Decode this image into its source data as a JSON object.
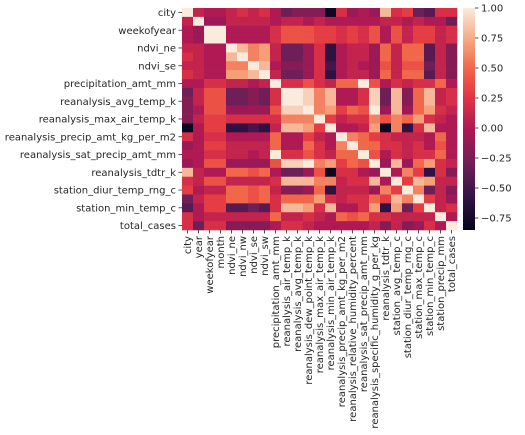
{
  "chart_data": {
    "type": "heatmap",
    "title": "",
    "xlabel": "",
    "ylabel": "",
    "x_labels": [
      "city",
      "year",
      "weekofyear",
      "month",
      "ndvi_ne",
      "ndvi_nw",
      "ndvi_se",
      "ndvi_sw",
      "precipitation_amt_mm",
      "reanalysis_air_temp_k",
      "reanalysis_avg_temp_k",
      "reanalysis_dew_point_temp_k",
      "reanalysis_max_air_temp_k",
      "reanalysis_min_air_temp_k",
      "reanalysis_precip_amt_kg_per_m2",
      "reanalysis_relative_humidity_percent",
      "reanalysis_sat_precip_amt_mm",
      "reanalysis_specific_humidity_g_per_kg",
      "reanalysis_tdtr_k",
      "station_avg_temp_c",
      "station_diur_temp_rng_c",
      "station_max_temp_c",
      "station_min_temp_c",
      "station_precip_mm",
      "total_cases"
    ],
    "y_labels": [
      "city",
      "year",
      "weekofyear",
      "month",
      "ndvi_ne",
      "ndvi_nw",
      "ndvi_se",
      "ndvi_sw",
      "precipitation_amt_mm",
      "reanalysis_air_temp_k",
      "reanalysis_avg_temp_k",
      "reanalysis_dew_point_temp_k",
      "reanalysis_max_air_temp_k",
      "reanalysis_min_air_temp_k",
      "reanalysis_precip_amt_kg_per_m2",
      "reanalysis_relative_humidity_percent",
      "reanalysis_sat_precip_amt_mm",
      "reanalysis_specific_humidity_g_per_kg",
      "reanalysis_tdtr_k",
      "station_avg_temp_c",
      "station_diur_temp_rng_c",
      "station_max_temp_c",
      "station_min_temp_c",
      "station_precip_mm",
      "total_cases"
    ],
    "y_tick_labels_shown": [
      "city",
      "weekofyear",
      "ndvi_ne",
      "ndvi_se",
      "precipitation_amt_mm",
      "reanalysis_avg_temp_k",
      "reanalysis_max_air_temp_k",
      "reanalysis_precip_amt_kg_per_m2",
      "reanalysis_sat_precip_amt_mm",
      "reanalysis_tdtr_k",
      "station_diur_temp_rng_c",
      "station_min_temp_c",
      "total_cases"
    ],
    "values": [
      [
        1.0,
        0.1,
        0.0,
        0.0,
        0.1,
        0.2,
        0.1,
        0.2,
        0.0,
        -0.3,
        -0.2,
        -0.2,
        -0.2,
        -0.8,
        0.2,
        -0.1,
        0.0,
        -0.1,
        0.8,
        0.2,
        0.3,
        -0.3,
        -0.4,
        0.2,
        0.2
      ],
      [
        0.1,
        1.0,
        -0.1,
        -0.1,
        0.1,
        0.1,
        0.1,
        0.1,
        0.0,
        0.1,
        0.1,
        0.0,
        0.1,
        0.0,
        0.0,
        0.0,
        0.0,
        0.0,
        0.1,
        0.1,
        0.0,
        0.1,
        0.0,
        0.0,
        -0.3
      ],
      [
        0.0,
        -0.1,
        1.0,
        1.0,
        0.0,
        0.0,
        0.0,
        0.0,
        0.2,
        0.4,
        0.4,
        0.4,
        0.3,
        0.3,
        0.2,
        0.3,
        0.2,
        0.4,
        0.0,
        0.4,
        0.1,
        0.3,
        0.3,
        0.1,
        0.2
      ],
      [
        0.0,
        -0.1,
        1.0,
        1.0,
        0.0,
        0.0,
        0.0,
        0.0,
        0.2,
        0.4,
        0.4,
        0.4,
        0.3,
        0.3,
        0.2,
        0.3,
        0.2,
        0.4,
        0.0,
        0.4,
        0.1,
        0.3,
        0.3,
        0.1,
        0.2
      ],
      [
        0.1,
        0.1,
        0.0,
        0.0,
        1.0,
        0.8,
        0.6,
        0.7,
        0.1,
        -0.3,
        -0.3,
        -0.1,
        0.2,
        -0.6,
        0.0,
        0.1,
        0.1,
        -0.1,
        0.5,
        0.1,
        0.5,
        0.5,
        -0.4,
        0.1,
        -0.2
      ],
      [
        0.2,
        0.1,
        0.0,
        0.0,
        0.8,
        1.0,
        0.6,
        0.7,
        0.1,
        -0.3,
        -0.3,
        -0.1,
        0.2,
        -0.6,
        0.0,
        0.1,
        0.1,
        -0.1,
        0.5,
        0.1,
        0.5,
        0.5,
        -0.4,
        0.1,
        -0.2
      ],
      [
        0.1,
        0.1,
        0.0,
        0.0,
        0.6,
        0.6,
        1.0,
        0.8,
        0.0,
        -0.2,
        -0.2,
        -0.1,
        0.2,
        -0.5,
        0.0,
        0.1,
        0.0,
        -0.1,
        0.4,
        0.1,
        0.4,
        0.4,
        -0.3,
        0.1,
        -0.2
      ],
      [
        0.2,
        0.1,
        0.0,
        0.0,
        0.7,
        0.7,
        0.8,
        1.0,
        0.1,
        -0.3,
        -0.3,
        -0.1,
        0.2,
        -0.6,
        0.0,
        0.1,
        0.1,
        -0.1,
        0.5,
        0.1,
        0.5,
        0.5,
        -0.4,
        0.1,
        -0.2
      ],
      [
        0.0,
        0.0,
        0.2,
        0.2,
        0.1,
        0.1,
        0.0,
        0.1,
        1.0,
        0.2,
        0.2,
        0.4,
        0.2,
        0.1,
        0.5,
        0.5,
        1.0,
        0.4,
        0.0,
        0.2,
        0.1,
        0.2,
        0.2,
        0.5,
        0.0
      ],
      [
        -0.3,
        0.1,
        0.4,
        0.4,
        -0.3,
        -0.3,
        -0.2,
        -0.3,
        0.2,
        1.0,
        1.0,
        0.9,
        0.6,
        0.8,
        0.0,
        0.0,
        0.2,
        0.9,
        -0.3,
        0.8,
        -0.2,
        0.5,
        0.8,
        0.1,
        0.2
      ],
      [
        -0.2,
        0.1,
        0.4,
        0.4,
        -0.3,
        -0.3,
        -0.2,
        -0.3,
        0.2,
        1.0,
        1.0,
        0.9,
        0.6,
        0.8,
        0.0,
        0.0,
        0.2,
        0.9,
        -0.3,
        0.8,
        -0.2,
        0.5,
        0.8,
        0.1,
        0.2
      ],
      [
        -0.2,
        0.0,
        0.4,
        0.4,
        -0.1,
        -0.1,
        -0.1,
        -0.1,
        0.4,
        0.9,
        0.9,
        1.0,
        0.6,
        0.7,
        0.3,
        0.5,
        0.4,
        1.0,
        -0.1,
        0.8,
        -0.1,
        0.5,
        0.7,
        0.2,
        0.1
      ],
      [
        -0.2,
        0.1,
        0.3,
        0.3,
        0.2,
        0.2,
        0.2,
        0.2,
        0.2,
        0.6,
        0.6,
        0.6,
        1.0,
        0.3,
        0.1,
        0.2,
        0.2,
        0.6,
        0.4,
        0.6,
        0.5,
        0.7,
        0.2,
        0.1,
        0.0
      ],
      [
        -0.8,
        0.0,
        0.3,
        0.3,
        -0.6,
        -0.6,
        -0.5,
        -0.6,
        0.1,
        0.8,
        0.8,
        0.7,
        0.3,
        1.0,
        0.0,
        0.0,
        0.1,
        0.7,
        -0.8,
        0.6,
        -0.6,
        0.2,
        0.8,
        0.0,
        0.0
      ],
      [
        0.2,
        0.0,
        0.2,
        0.2,
        0.0,
        0.0,
        0.0,
        0.0,
        0.5,
        0.0,
        0.0,
        0.3,
        0.1,
        0.0,
        1.0,
        0.6,
        0.5,
        0.3,
        0.2,
        0.1,
        0.1,
        0.1,
        0.0,
        0.5,
        0.0
      ],
      [
        -0.1,
        0.0,
        0.3,
        0.3,
        0.1,
        0.1,
        0.1,
        0.1,
        0.5,
        0.0,
        0.0,
        0.5,
        0.2,
        0.0,
        0.6,
        1.0,
        0.5,
        0.5,
        0.2,
        0.2,
        0.1,
        0.2,
        0.0,
        0.4,
        0.0
      ],
      [
        0.0,
        0.0,
        0.2,
        0.2,
        0.1,
        0.1,
        0.0,
        0.1,
        1.0,
        0.2,
        0.2,
        0.4,
        0.2,
        0.1,
        0.5,
        0.5,
        1.0,
        0.4,
        0.0,
        0.2,
        0.1,
        0.2,
        0.2,
        0.5,
        0.0
      ],
      [
        -0.1,
        0.0,
        0.4,
        0.4,
        -0.1,
        -0.1,
        -0.1,
        -0.1,
        0.4,
        0.9,
        0.9,
        1.0,
        0.6,
        0.7,
        0.3,
        0.5,
        0.4,
        1.0,
        -0.1,
        0.8,
        -0.1,
        0.5,
        0.7,
        0.2,
        0.1
      ],
      [
        0.8,
        0.1,
        0.0,
        0.0,
        0.5,
        0.5,
        0.4,
        0.5,
        0.0,
        -0.3,
        -0.3,
        -0.1,
        0.4,
        -0.8,
        0.2,
        0.2,
        0.0,
        -0.1,
        1.0,
        0.0,
        0.6,
        0.3,
        -0.6,
        0.2,
        -0.2
      ],
      [
        0.2,
        0.1,
        0.4,
        0.4,
        0.1,
        0.1,
        0.1,
        0.1,
        0.2,
        0.8,
        0.8,
        0.8,
        0.6,
        0.6,
        0.1,
        0.2,
        0.2,
        0.8,
        0.0,
        1.0,
        0.3,
        0.8,
        0.7,
        0.1,
        0.1
      ],
      [
        0.3,
        0.0,
        0.1,
        0.1,
        0.5,
        0.5,
        0.4,
        0.5,
        0.1,
        -0.2,
        -0.2,
        -0.1,
        0.5,
        -0.6,
        0.1,
        0.1,
        0.1,
        -0.1,
        0.6,
        0.3,
        1.0,
        0.6,
        -0.3,
        0.1,
        -0.2
      ],
      [
        -0.3,
        0.1,
        0.3,
        0.3,
        0.5,
        0.5,
        0.4,
        0.5,
        0.2,
        0.5,
        0.5,
        0.5,
        0.7,
        0.2,
        0.1,
        0.2,
        0.2,
        0.5,
        0.3,
        0.8,
        0.6,
        1.0,
        0.3,
        0.1,
        -0.1
      ],
      [
        -0.4,
        0.0,
        0.3,
        0.3,
        -0.4,
        -0.4,
        -0.3,
        -0.4,
        0.2,
        0.8,
        0.8,
        0.7,
        0.2,
        0.8,
        0.0,
        0.0,
        0.2,
        0.7,
        -0.6,
        0.7,
        -0.3,
        0.3,
        1.0,
        0.1,
        0.2
      ],
      [
        0.2,
        0.0,
        0.1,
        0.1,
        0.1,
        0.1,
        0.1,
        0.1,
        0.5,
        0.1,
        0.1,
        0.2,
        0.1,
        0.0,
        0.5,
        0.4,
        0.5,
        0.2,
        0.2,
        0.1,
        0.1,
        0.1,
        0.1,
        1.0,
        0.0
      ],
      [
        0.2,
        -0.3,
        0.2,
        0.2,
        -0.2,
        -0.2,
        -0.2,
        -0.2,
        0.0,
        0.2,
        0.2,
        0.1,
        0.0,
        0.0,
        0.0,
        0.0,
        0.0,
        0.1,
        -0.2,
        0.1,
        -0.2,
        -0.1,
        0.2,
        0.0,
        1.0
      ]
    ],
    "colorbar": {
      "range": [
        -0.85,
        1.0
      ],
      "ticks": [
        "1.00",
        "0.75",
        "0.50",
        "0.25",
        "0.00",
        "−0.25",
        "−0.50",
        "−0.75"
      ],
      "tick_values": [
        1.0,
        0.75,
        0.5,
        0.25,
        0.0,
        -0.25,
        -0.5,
        -0.75
      ],
      "colormap": "rocket"
    }
  }
}
